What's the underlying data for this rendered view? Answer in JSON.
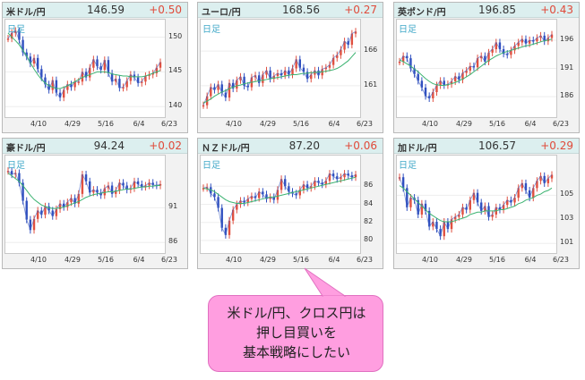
{
  "charts": [
    {
      "name": "米ドル/円",
      "price": "146.59",
      "change": "+0.50",
      "period": "日足",
      "ymin": 139,
      "ymax": 152,
      "yticks": [
        140,
        145,
        150
      ],
      "xticks": [
        "4/10",
        "4/29",
        "5/16",
        "6/4",
        "6/23"
      ],
      "series": [
        149.8,
        150.6,
        150.9,
        149.6,
        147.8,
        147.2,
        146.2,
        147.0,
        145.4,
        144.2,
        143.2,
        142.4,
        143.8,
        142.0,
        141.3,
        142.4,
        143.2,
        142.8,
        143.6,
        143.6,
        145.0,
        144.2,
        145.6,
        146.8,
        145.8,
        145.3,
        146.7,
        144.8,
        143.6,
        144.0,
        142.7,
        142.8,
        143.7,
        144.6,
        144.2,
        143.4,
        143.6,
        144.4,
        144.6,
        144.8,
        145.6,
        146.4
      ],
      "ma": [
        150.6,
        150.0,
        149.5,
        148.9,
        148.1,
        147.3,
        146.3,
        145.4,
        144.6,
        143.9,
        143.4,
        143.0,
        142.8,
        142.6,
        142.6,
        142.8,
        143.0,
        143.3,
        143.6,
        143.9,
        144.2,
        144.4,
        144.6,
        144.8,
        145.0,
        145.0,
        145.0,
        144.9,
        144.7,
        144.6,
        144.5,
        144.4,
        144.4,
        144.3,
        144.3,
        144.3,
        144.3,
        144.4,
        144.6,
        144.8,
        145.0,
        145.2
      ]
    },
    {
      "name": "ユーロ/円",
      "price": "168.56",
      "change": "+0.27",
      "period": "日足",
      "ymin": 157,
      "ymax": 170,
      "yticks": [
        161,
        166
      ],
      "xticks": [
        "4/10",
        "4/29",
        "5/16",
        "6/4",
        "6/23"
      ],
      "series": [
        158.2,
        159.5,
        160.8,
        160.4,
        161.2,
        160.0,
        159.3,
        161.4,
        160.6,
        161.8,
        162.3,
        161.0,
        160.8,
        162.2,
        162.5,
        161.4,
        162.6,
        163.2,
        162.0,
        162.4,
        162.8,
        162.5,
        163.2,
        162.6,
        163.5,
        164.8,
        163.6,
        163.0,
        162.0,
        162.6,
        163.2,
        162.5,
        163.4,
        163.6,
        164.0,
        165.0,
        165.4,
        166.2,
        167.4,
        166.9,
        168.5,
        168.8
      ],
      "ma": [
        158.5,
        158.8,
        159.1,
        159.5,
        159.8,
        160.1,
        160.3,
        160.6,
        160.8,
        161.0,
        161.1,
        161.3,
        161.4,
        161.5,
        161.6,
        161.7,
        161.8,
        161.9,
        162.0,
        162.1,
        162.2,
        162.3,
        162.4,
        162.5,
        162.6,
        162.6,
        162.7,
        162.8,
        162.8,
        162.9,
        162.9,
        163.0,
        163.0,
        163.1,
        163.2,
        163.3,
        163.5,
        163.8,
        164.2,
        164.6,
        165.2,
        165.8
      ]
    },
    {
      "name": "英ポンド/円",
      "price": "196.85",
      "change": "+0.43",
      "period": "日足",
      "ymin": 183,
      "ymax": 199,
      "yticks": [
        186,
        191,
        196
      ],
      "xticks": [
        "4/10",
        "4/29",
        "5/16",
        "6/4",
        "6/23"
      ],
      "series": [
        192.2,
        193.2,
        192.8,
        191.0,
        190.0,
        188.8,
        187.6,
        186.1,
        185.7,
        186.8,
        188.0,
        188.8,
        188.0,
        188.2,
        188.7,
        189.6,
        189.0,
        190.2,
        190.6,
        191.4,
        191.2,
        192.8,
        193.2,
        192.2,
        193.8,
        194.4,
        195.6,
        194.4,
        193.6,
        193.4,
        194.2,
        195.0,
        195.6,
        196.2,
        195.4,
        196.0,
        195.8,
        196.4,
        196.8,
        195.8,
        196.4,
        197.0
      ],
      "ma": [
        192.5,
        192.2,
        191.8,
        191.4,
        190.9,
        190.4,
        189.8,
        189.2,
        188.7,
        188.3,
        188.1,
        188.0,
        188.0,
        188.1,
        188.3,
        188.5,
        188.8,
        189.1,
        189.5,
        189.9,
        190.4,
        190.9,
        191.4,
        191.9,
        192.4,
        192.8,
        193.2,
        193.5,
        193.8,
        194.0,
        194.2,
        194.4,
        194.6,
        194.8,
        195.0,
        195.1,
        195.3,
        195.5,
        195.7,
        195.9,
        196.0,
        196.2
      ]
    },
    {
      "name": "豪ドル/円",
      "price": "94.24",
      "change": "+0.02",
      "period": "日足",
      "ymin": 85,
      "ymax": 98,
      "yticks": [
        86,
        91
      ],
      "xticks": [
        "4/10",
        "4/29",
        "5/16",
        "6/4",
        "6/23"
      ],
      "series": [
        96.3,
        95.8,
        96.0,
        94.6,
        92.0,
        89.3,
        87.8,
        89.4,
        90.6,
        90.0,
        91.2,
        90.6,
        89.8,
        90.8,
        91.6,
        91.1,
        91.8,
        92.4,
        91.6,
        93.0,
        95.8,
        94.8,
        93.2,
        93.6,
        93.2,
        92.8,
        93.8,
        94.2,
        93.0,
        93.5,
        94.6,
        94.2,
        93.6,
        93.8,
        94.8,
        94.4,
        94.0,
        94.2,
        94.6,
        94.3,
        94.2,
        94.4
      ],
      "ma": [
        96.0,
        95.6,
        95.2,
        94.8,
        94.2,
        93.5,
        92.8,
        92.2,
        91.8,
        91.4,
        91.2,
        91.0,
        90.9,
        90.9,
        91.0,
        91.1,
        91.3,
        91.5,
        91.7,
        91.9,
        92.2,
        92.5,
        92.7,
        92.9,
        93.0,
        93.1,
        93.2,
        93.3,
        93.3,
        93.4,
        93.5,
        93.6,
        93.7,
        93.7,
        93.8,
        93.9,
        94.0,
        94.0,
        94.1,
        94.1,
        94.2,
        94.2
      ]
    },
    {
      "name": "ＮＺドル/円",
      "price": "87.20",
      "change": "+0.06",
      "period": "日足",
      "ymin": 79,
      "ymax": 89,
      "yticks": [
        80,
        82,
        84,
        86
      ],
      "xticks": [
        "4/10",
        "4/29",
        "5/16",
        "6/4",
        "6/23"
      ],
      "series": [
        85.8,
        85.9,
        85.2,
        84.8,
        83.6,
        81.4,
        80.6,
        82.2,
        83.4,
        84.0,
        84.4,
        84.2,
        84.6,
        84.9,
        84.7,
        85.4,
        85.1,
        84.6,
        84.8,
        84.5,
        85.6,
        86.8,
        86.0,
        85.4,
        85.2,
        85.0,
        85.6,
        86.2,
        85.8,
        86.0,
        86.6,
        86.4,
        86.2,
        86.6,
        87.4,
        87.1,
        86.8,
        87.0,
        87.4,
        87.2,
        87.0,
        87.3
      ],
      "ma": [
        85.8,
        85.7,
        85.6,
        85.4,
        85.1,
        84.8,
        84.5,
        84.3,
        84.2,
        84.1,
        84.1,
        84.1,
        84.2,
        84.3,
        84.4,
        84.5,
        84.6,
        84.7,
        84.8,
        84.8,
        84.9,
        85.0,
        85.1,
        85.2,
        85.3,
        85.4,
        85.5,
        85.6,
        85.7,
        85.8,
        85.9,
        86.0,
        86.1,
        86.2,
        86.3,
        86.4,
        86.5,
        86.6,
        86.7,
        86.8,
        86.9,
        87.0
      ]
    },
    {
      "name": "加ドル/円",
      "price": "106.57",
      "change": "+0.29",
      "period": "日足",
      "ymin": 100.5,
      "ymax": 108,
      "yticks": [
        101,
        103,
        105
      ],
      "xticks": [
        "4/10",
        "4/29",
        "5/16",
        "6/4",
        "6/23"
      ],
      "series": [
        106.5,
        105.6,
        104.0,
        104.8,
        104.6,
        103.4,
        104.3,
        103.7,
        102.4,
        102.8,
        102.2,
        101.6,
        102.8,
        102.2,
        103.0,
        103.2,
        103.4,
        104.0,
        103.8,
        104.6,
        105.2,
        104.4,
        103.7,
        104.1,
        103.2,
        103.4,
        104.0,
        103.8,
        104.2,
        104.6,
        104.4,
        104.8,
        105.6,
        106.0,
        105.4,
        104.8,
        105.6,
        106.2,
        106.6,
        106.0,
        106.4,
        106.7
      ],
      "ma": [
        105.8,
        105.6,
        105.3,
        105.0,
        104.7,
        104.4,
        104.1,
        103.8,
        103.5,
        103.3,
        103.1,
        102.9,
        102.8,
        102.8,
        102.8,
        102.9,
        103.0,
        103.1,
        103.2,
        103.4,
        103.5,
        103.6,
        103.6,
        103.7,
        103.7,
        103.7,
        103.7,
        103.8,
        103.8,
        103.9,
        104.0,
        104.1,
        104.3,
        104.4,
        104.6,
        104.7,
        104.8,
        105.0,
        105.1,
        105.3,
        105.4,
        105.6
      ]
    }
  ],
  "callout": {
    "lines": [
      "米ドル/円、クロス円は",
      "押し目買いを",
      "基本戦略にしたい"
    ]
  },
  "colors": {
    "ma": "#3cb371",
    "up": "#e05040",
    "down": "#3050c0",
    "candle_ma": "#4060c0"
  }
}
